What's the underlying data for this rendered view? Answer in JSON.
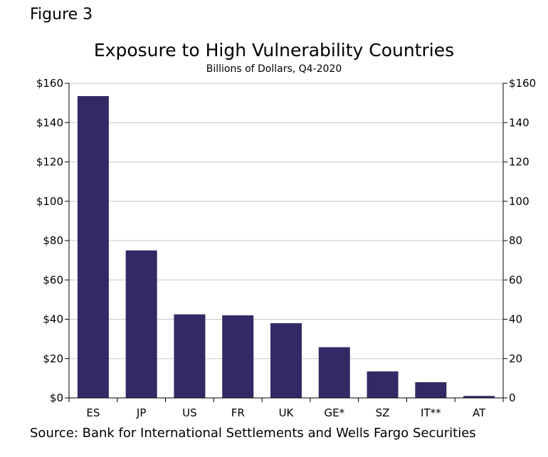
{
  "figure_label": "Figure 3",
  "source": "Source: Bank for International Settlements and Wells Fargo Securities",
  "colors": {
    "bar": "#322a64",
    "grid": "#c8c8c8",
    "axis": "#000000"
  },
  "chart_data": {
    "type": "bar",
    "title": "Exposure to High Vulnerability Countries",
    "subtitle": "Billions of Dollars, Q4-2020",
    "categories": [
      "ES",
      "JP",
      "US",
      "FR",
      "UK",
      "GE*",
      "SZ",
      "IT**",
      "AT"
    ],
    "values": [
      153.5,
      75,
      42.5,
      42,
      38,
      25.8,
      13.5,
      8,
      1
    ],
    "ylim": [
      0,
      160
    ],
    "yticks_left": [
      "$0",
      "$20",
      "$40",
      "$60",
      "$80",
      "$100",
      "$120",
      "$140",
      "$160"
    ],
    "yticks_right": [
      "0",
      "20",
      "40",
      "60",
      "80",
      "100",
      "120",
      "140",
      "$160"
    ],
    "grid": true
  }
}
